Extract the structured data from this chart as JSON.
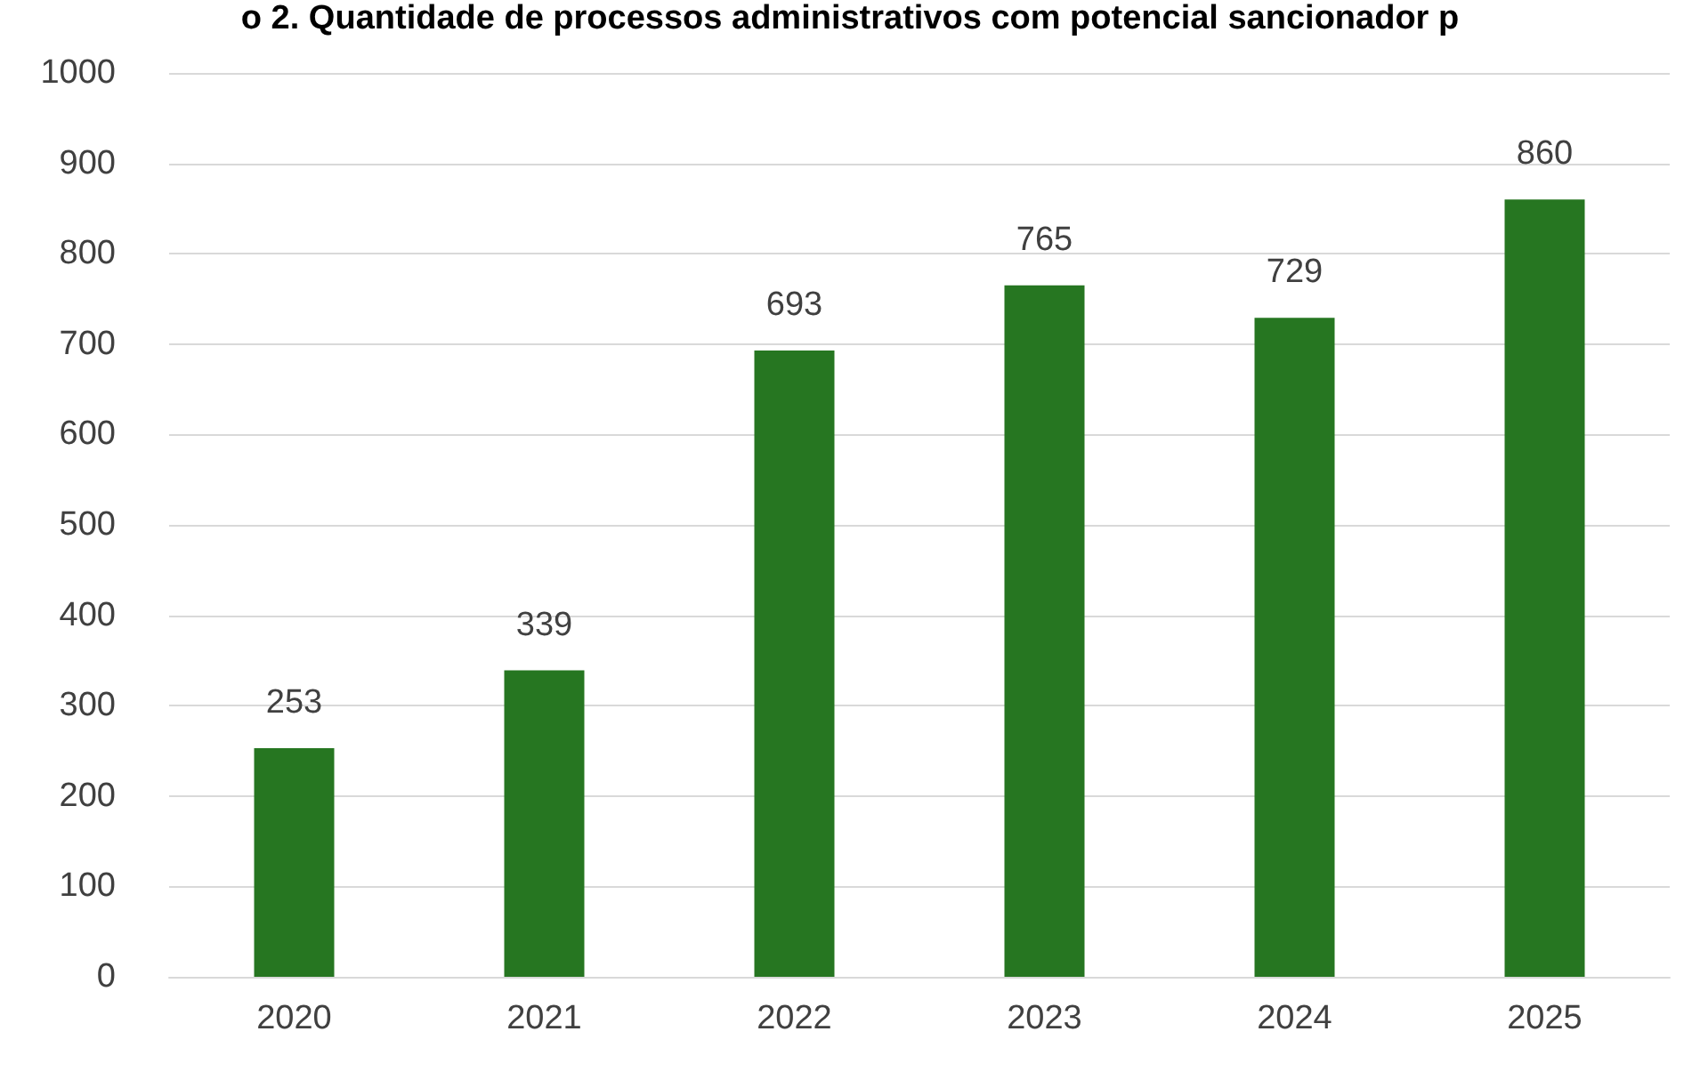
{
  "chart_data": {
    "type": "bar",
    "title": "o 2. Quantidade de processos administrativos com potencial sancionador p",
    "categories": [
      "2020",
      "2021",
      "2022",
      "2023",
      "2024",
      "2025"
    ],
    "values": [
      253,
      339,
      693,
      765,
      729,
      860
    ],
    "color": "#267621",
    "data_labels": true,
    "ylim": [
      0,
      1000
    ],
    "yticks": [
      0,
      100,
      200,
      300,
      400,
      500,
      600,
      700,
      800,
      900,
      1000
    ],
    "grid": "y"
  }
}
